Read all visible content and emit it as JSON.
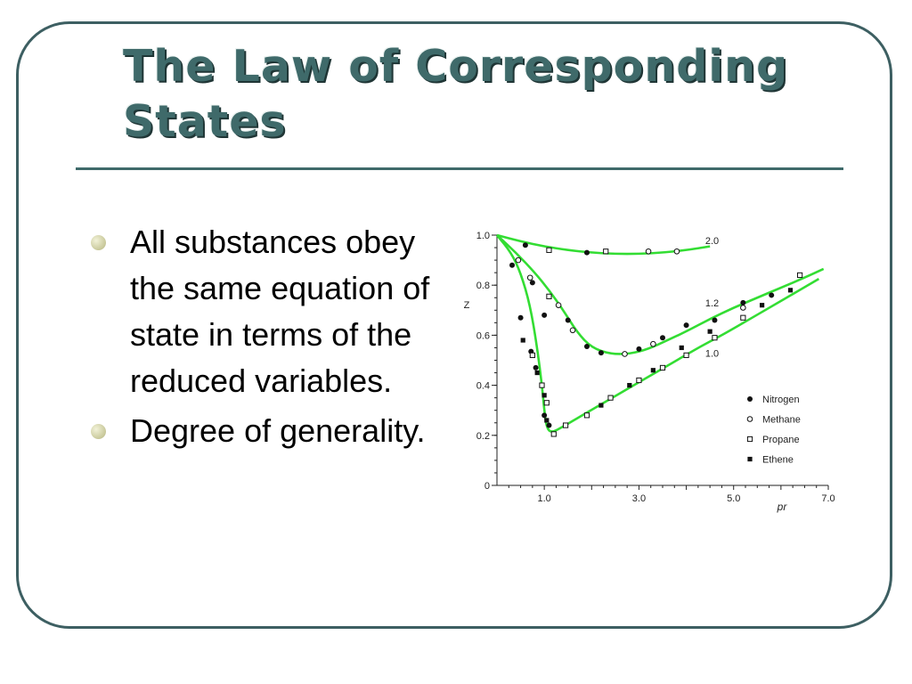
{
  "slide": {
    "title": "The Law of Corresponding States",
    "bullets": [
      "All substances obey the same equation of state in terms of the reduced variables.",
      "Degree of generality."
    ]
  },
  "colors": {
    "frame": "#3d5f62",
    "title": "#3f6a6a",
    "curve": "#33dd33",
    "bullet": "#c8c89a"
  },
  "chart_data": {
    "type": "line",
    "xlabel": "pr",
    "ylabel": "Z",
    "xlim": [
      0,
      7.0
    ],
    "ylim": [
      0,
      1.0
    ],
    "x_ticks": [
      {
        "v": 1.0,
        "label": "1.0"
      },
      {
        "v": 3.0,
        "label": "3.0"
      },
      {
        "v": 5.0,
        "label": "5.0"
      },
      {
        "v": 7.0,
        "label": "7.0"
      }
    ],
    "y_ticks": [
      {
        "v": 0,
        "label": "0"
      },
      {
        "v": 0.2,
        "label": "0.2"
      },
      {
        "v": 0.4,
        "label": "0.4"
      },
      {
        "v": 0.6,
        "label": "0.6"
      },
      {
        "v": 0.8,
        "label": "0.8"
      },
      {
        "v": 1.0,
        "label": "1.0"
      }
    ],
    "curves": [
      {
        "label": "2.0",
        "label_at": [
          4.4,
          0.965
        ],
        "points": [
          [
            0,
            1.0
          ],
          [
            0.5,
            0.975
          ],
          [
            1.0,
            0.955
          ],
          [
            1.5,
            0.94
          ],
          [
            2.0,
            0.93
          ],
          [
            2.5,
            0.925
          ],
          [
            3.0,
            0.925
          ],
          [
            3.5,
            0.93
          ],
          [
            4.0,
            0.94
          ],
          [
            4.5,
            0.955
          ]
        ]
      },
      {
        "label": "1.2",
        "label_at": [
          4.4,
          0.715
        ],
        "points": [
          [
            0,
            1.0
          ],
          [
            0.4,
            0.93
          ],
          [
            0.8,
            0.85
          ],
          [
            1.1,
            0.78
          ],
          [
            1.4,
            0.7
          ],
          [
            1.7,
            0.61
          ],
          [
            2.0,
            0.55
          ],
          [
            2.4,
            0.525
          ],
          [
            2.8,
            0.525
          ],
          [
            3.2,
            0.545
          ],
          [
            3.6,
            0.58
          ],
          [
            4.0,
            0.615
          ],
          [
            4.5,
            0.665
          ],
          [
            5.0,
            0.71
          ],
          [
            5.5,
            0.75
          ],
          [
            6.0,
            0.79
          ],
          [
            6.5,
            0.83
          ],
          [
            6.9,
            0.865
          ]
        ]
      },
      {
        "label": "1.0",
        "label_at": [
          4.4,
          0.515
        ],
        "points": [
          [
            0,
            1.0
          ],
          [
            0.3,
            0.93
          ],
          [
            0.5,
            0.85
          ],
          [
            0.7,
            0.72
          ],
          [
            0.85,
            0.55
          ],
          [
            0.95,
            0.4
          ],
          [
            1.0,
            0.3
          ],
          [
            1.05,
            0.23
          ],
          [
            1.15,
            0.21
          ],
          [
            1.4,
            0.235
          ],
          [
            1.8,
            0.28
          ],
          [
            2.3,
            0.335
          ],
          [
            2.8,
            0.39
          ],
          [
            3.3,
            0.445
          ],
          [
            3.8,
            0.5
          ],
          [
            4.3,
            0.555
          ],
          [
            4.8,
            0.605
          ],
          [
            5.3,
            0.66
          ],
          [
            5.8,
            0.715
          ],
          [
            6.3,
            0.77
          ],
          [
            6.8,
            0.825
          ]
        ]
      }
    ],
    "series": [
      {
        "name": "Nitrogen",
        "marker": "filled-circle",
        "points": [
          [
            0.6,
            0.96
          ],
          [
            0.32,
            0.88
          ],
          [
            0.75,
            0.81
          ],
          [
            1.0,
            0.68
          ],
          [
            0.5,
            0.67
          ],
          [
            1.5,
            0.66
          ],
          [
            1.9,
            0.555
          ],
          [
            0.72,
            0.535
          ],
          [
            0.82,
            0.47
          ],
          [
            2.2,
            0.53
          ],
          [
            1.0,
            0.28
          ],
          [
            1.1,
            0.24
          ],
          [
            3.0,
            0.545
          ],
          [
            3.5,
            0.59
          ],
          [
            4.0,
            0.64
          ],
          [
            4.6,
            0.66
          ],
          [
            5.2,
            0.73
          ],
          [
            5.8,
            0.76
          ],
          [
            1.9,
            0.93
          ]
        ]
      },
      {
        "name": "Methane",
        "marker": "open-circle",
        "points": [
          [
            0.45,
            0.9
          ],
          [
            0.7,
            0.83
          ],
          [
            1.3,
            0.72
          ],
          [
            1.6,
            0.62
          ],
          [
            2.7,
            0.525
          ],
          [
            3.3,
            0.565
          ],
          [
            3.2,
            0.935
          ],
          [
            3.8,
            0.935
          ],
          [
            5.2,
            0.71
          ]
        ]
      },
      {
        "name": "Propane",
        "marker": "open-square",
        "points": [
          [
            1.1,
            0.755
          ],
          [
            0.75,
            0.52
          ],
          [
            0.95,
            0.4
          ],
          [
            1.05,
            0.33
          ],
          [
            1.2,
            0.205
          ],
          [
            1.45,
            0.24
          ],
          [
            1.9,
            0.28
          ],
          [
            2.4,
            0.35
          ],
          [
            3.0,
            0.42
          ],
          [
            3.5,
            0.47
          ],
          [
            4.0,
            0.52
          ],
          [
            4.6,
            0.59
          ],
          [
            5.2,
            0.67
          ],
          [
            6.4,
            0.84
          ],
          [
            1.1,
            0.94
          ],
          [
            2.3,
            0.935
          ]
        ]
      },
      {
        "name": "Ethene",
        "marker": "filled-square",
        "points": [
          [
            0.55,
            0.58
          ],
          [
            0.85,
            0.45
          ],
          [
            1.0,
            0.36
          ],
          [
            1.05,
            0.26
          ],
          [
            2.2,
            0.32
          ],
          [
            2.8,
            0.4
          ],
          [
            3.3,
            0.46
          ],
          [
            3.9,
            0.55
          ],
          [
            4.5,
            0.615
          ],
          [
            5.6,
            0.72
          ],
          [
            6.2,
            0.78
          ]
        ]
      }
    ]
  }
}
